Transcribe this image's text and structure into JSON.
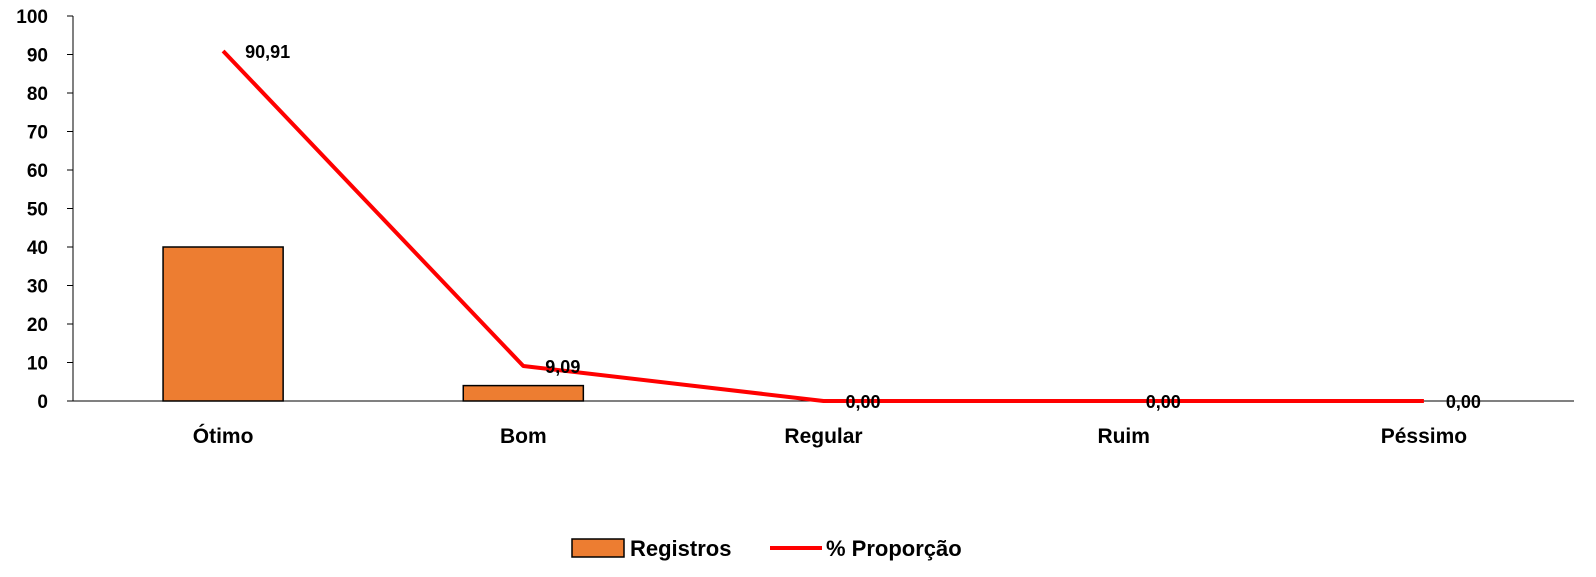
{
  "chart_data": {
    "type": "bar+line",
    "categories": [
      "Ótimo",
      "Bom",
      "Regular",
      "Ruim",
      "Péssimo"
    ],
    "series": [
      {
        "name": "Registros",
        "type": "bar",
        "values": [
          40,
          4,
          0,
          0,
          0
        ],
        "color": "#ED7D31"
      },
      {
        "name": "% Proporção",
        "type": "line",
        "values": [
          90.91,
          9.09,
          0,
          0,
          0
        ],
        "color": "#FF0000",
        "data_labels": [
          "90,91",
          "9,09",
          "0,00",
          "0,00",
          "0,00"
        ]
      }
    ],
    "ylim": [
      0,
      100
    ],
    "yticks": [
      "0",
      "10",
      "20",
      "30",
      "40",
      "50",
      "60",
      "70",
      "80",
      "90",
      "100"
    ],
    "grid": false,
    "legend_position": "bottom"
  }
}
